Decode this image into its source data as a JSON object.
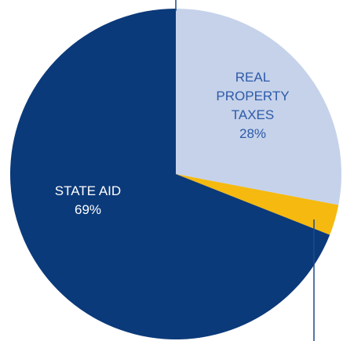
{
  "chart_data": {
    "type": "pie",
    "slices": [
      {
        "label_lines": [
          "REAL",
          "PROPERTY",
          "TAXES"
        ],
        "percent_label": "28%",
        "value": 28,
        "color": "#c5d2ea",
        "text_color": "#2e5aa8"
      },
      {
        "label_lines": [],
        "percent_label": "",
        "value": 3,
        "color": "#f5b90f",
        "text_color": "#ffffff"
      },
      {
        "label_lines": [
          "STATE AID"
        ],
        "percent_label": "69%",
        "value": 69,
        "color": "#0b3a7a",
        "text_color": "#ffffff"
      }
    ],
    "start_angle_deg": 0,
    "direction": "clockwise",
    "leader_line_color": "#1d4a8c"
  }
}
